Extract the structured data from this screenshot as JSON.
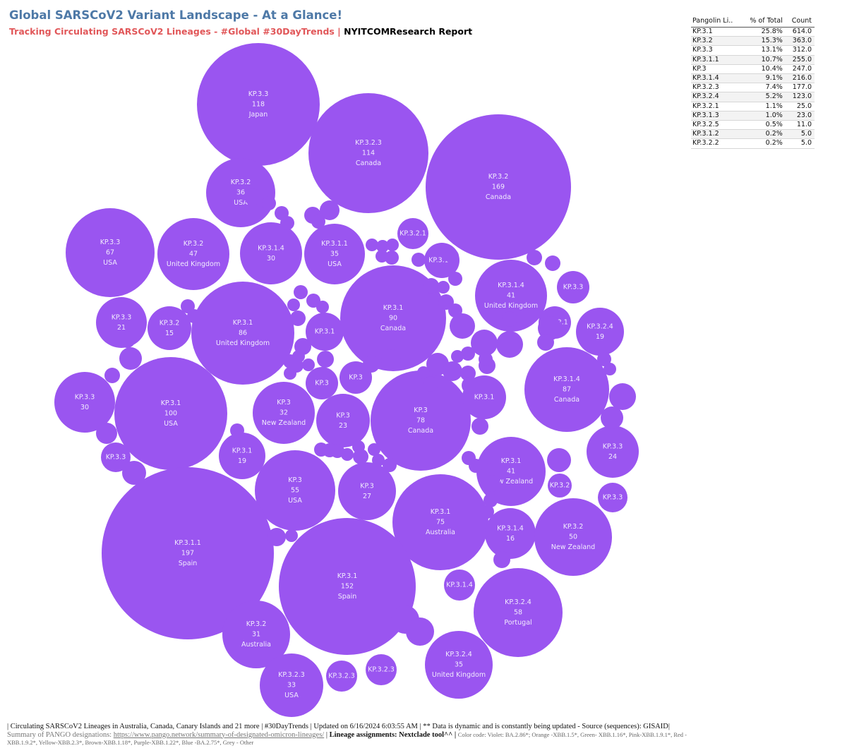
{
  "header": {
    "title": "Global SARSCoV2 Variant Landscape - At a Glance!",
    "subtitle_red": "Tracking Circulating SARSCoV2 Lineages - #Global #30DayTrends",
    "subtitle_sep": " | ",
    "subtitle_black": "NYITCOMResearch Report"
  },
  "colors": {
    "bubble": "#9a55f0",
    "title": "#4e79a7",
    "subtitle": "#e15759",
    "bubble_text": "#f1ebfd"
  },
  "legend_table": {
    "headers": [
      "Pangolin Li..",
      "% of Total",
      "Count"
    ],
    "rows": [
      [
        "KP.3.1",
        "25.8%",
        "614.0"
      ],
      [
        "KP.3.2",
        "15.3%",
        "363.0"
      ],
      [
        "KP.3.3",
        "13.1%",
        "312.0"
      ],
      [
        "KP.3.1.1",
        "10.7%",
        "255.0"
      ],
      [
        "KP.3",
        "10.4%",
        "247.0"
      ],
      [
        "KP.3.1.4",
        "9.1%",
        "216.0"
      ],
      [
        "KP.3.2.3",
        "7.4%",
        "177.0"
      ],
      [
        "KP.3.2.4",
        "5.2%",
        "123.0"
      ],
      [
        "KP.3.2.1",
        "1.1%",
        "25.0"
      ],
      [
        "KP.3.1.3",
        "1.0%",
        "23.0"
      ],
      [
        "KP.3.2.5",
        "0.5%",
        "11.0"
      ],
      [
        "KP.3.1.2",
        "0.2%",
        "5.0"
      ],
      [
        "KP.3.2.2",
        "0.2%",
        "5.0"
      ]
    ]
  },
  "chart_data": {
    "type": "bubble",
    "value_label": "Count",
    "bubbles": [
      {
        "lineage": "KP.3.3",
        "value": 118,
        "country": "Japan"
      },
      {
        "lineage": "KP.3.2.3",
        "value": 114,
        "country": "Canada"
      },
      {
        "lineage": "KP.3.2",
        "value": 169,
        "country": "Canada"
      },
      {
        "lineage": "KP.3.2",
        "value": 36,
        "country": "USA"
      },
      {
        "lineage": "KP.3.3",
        "value": 67,
        "country": "USA"
      },
      {
        "lineage": "KP.3.2",
        "value": 47,
        "country": "United Kingdom"
      },
      {
        "lineage": "KP.3.1.4",
        "value": 30
      },
      {
        "lineage": "KP.3.1.1",
        "value": 35,
        "country": "USA"
      },
      {
        "lineage": "KP.3.2.1"
      },
      {
        "lineage": "KP.3.1.3"
      },
      {
        "lineage": "KP.3.1.4",
        "value": 41,
        "country": "United Kingdom"
      },
      {
        "lineage": "KP.3.3"
      },
      {
        "lineage": "KP.3.3",
        "value": 21
      },
      {
        "lineage": "KP.3.2",
        "value": 15
      },
      {
        "lineage": "KP.3.1",
        "value": 86,
        "country": "United Kingdom"
      },
      {
        "lineage": "KP.3.1"
      },
      {
        "lineage": "KP.3.1",
        "value": 90,
        "country": "Canada"
      },
      {
        "lineage": "KP.3.2.1"
      },
      {
        "lineage": "KP.3.2.4",
        "value": 19
      },
      {
        "lineage": "KP.3.3",
        "value": 30
      },
      {
        "lineage": "KP.3.1",
        "value": 100,
        "country": "USA"
      },
      {
        "lineage": "KP.3"
      },
      {
        "lineage": "KP.3"
      },
      {
        "lineage": "KP.3",
        "value": 32,
        "country": "New Zealand"
      },
      {
        "lineage": "KP.3",
        "value": 23
      },
      {
        "lineage": "KP.3",
        "value": 78,
        "country": "Canada"
      },
      {
        "lineage": "KP.3.1"
      },
      {
        "lineage": "KP.3.1.4",
        "value": 87,
        "country": "Canada"
      },
      {
        "lineage": "KP.3.3"
      },
      {
        "lineage": "KP.3.1",
        "value": 19
      },
      {
        "lineage": "KP.3.3",
        "value": 24
      },
      {
        "lineage": "KP.3.1",
        "value": 41,
        "country": "New Zealand"
      },
      {
        "lineage": "KP.3.2"
      },
      {
        "lineage": "KP.3.3"
      },
      {
        "lineage": "KP.3",
        "value": 55,
        "country": "USA"
      },
      {
        "lineage": "KP.3",
        "value": 27
      },
      {
        "lineage": "KP.3.1",
        "value": 75,
        "country": "Australia"
      },
      {
        "lineage": "KP.3.1.4",
        "value": 16
      },
      {
        "lineage": "KP.3.2",
        "value": 50,
        "country": "New Zealand"
      },
      {
        "lineage": "KP.3.1.1",
        "value": 197,
        "country": "Spain"
      },
      {
        "lineage": "KP.3.1",
        "value": 152,
        "country": "Spain"
      },
      {
        "lineage": "KP.3.1.4"
      },
      {
        "lineage": "KP.3.2.4",
        "value": 58,
        "country": "Portugal"
      },
      {
        "lineage": "KP.3.2",
        "value": 31,
        "country": "Australia"
      },
      {
        "lineage": "KP.3.2.4",
        "value": 35,
        "country": "United Kingdom"
      },
      {
        "lineage": "KP.3.2.3"
      },
      {
        "lineage": "KP.3.2.3"
      },
      {
        "lineage": "KP.3.2.3",
        "value": 33,
        "country": "USA"
      },
      {
        "lineage": ""
      },
      {
        "lineage": ""
      },
      {
        "lineage": ""
      },
      {
        "lineage": ""
      },
      {
        "lineage": ""
      },
      {
        "lineage": ""
      },
      {
        "lineage": ""
      },
      {
        "lineage": ""
      },
      {
        "lineage": ""
      },
      {
        "lineage": ""
      },
      {
        "lineage": ""
      },
      {
        "lineage": ""
      },
      {
        "lineage": ""
      },
      {
        "lineage": ""
      },
      {
        "lineage": ""
      },
      {
        "lineage": ""
      },
      {
        "lineage": ""
      },
      {
        "lineage": ""
      },
      {
        "lineage": ""
      },
      {
        "lineage": ""
      },
      {
        "lineage": ""
      },
      {
        "lineage": ""
      },
      {
        "lineage": ""
      },
      {
        "lineage": ""
      },
      {
        "lineage": ""
      },
      {
        "lineage": ""
      },
      {
        "lineage": ""
      },
      {
        "lineage": ""
      },
      {
        "lineage": ""
      },
      {
        "lineage": ""
      },
      {
        "lineage": ""
      },
      {
        "lineage": ""
      },
      {
        "lineage": ""
      },
      {
        "lineage": ""
      },
      {
        "lineage": ""
      },
      {
        "lineage": ""
      },
      {
        "lineage": ""
      },
      {
        "lineage": ""
      },
      {
        "lineage": ""
      },
      {
        "lineage": ""
      },
      {
        "lineage": ""
      },
      {
        "lineage": ""
      },
      {
        "lineage": ""
      },
      {
        "lineage": ""
      },
      {
        "lineage": ""
      },
      {
        "lineage": ""
      },
      {
        "lineage": ""
      },
      {
        "lineage": ""
      },
      {
        "lineage": ""
      },
      {
        "lineage": ""
      },
      {
        "lineage": ""
      },
      {
        "lineage": ""
      },
      {
        "lineage": ""
      },
      {
        "lineage": ""
      },
      {
        "lineage": ""
      },
      {
        "lineage": ""
      },
      {
        "lineage": ""
      },
      {
        "lineage": ""
      },
      {
        "lineage": ""
      },
      {
        "lineage": ""
      },
      {
        "lineage": ""
      },
      {
        "lineage": ""
      },
      {
        "lineage": ""
      },
      {
        "lineage": ""
      },
      {
        "lineage": ""
      },
      {
        "lineage": ""
      },
      {
        "lineage": ""
      },
      {
        "lineage": ""
      },
      {
        "lineage": ""
      },
      {
        "lineage": ""
      },
      {
        "lineage": ""
      },
      {
        "lineage": ""
      },
      {
        "lineage": ""
      },
      {
        "lineage": ""
      },
      {
        "lineage": ""
      },
      {
        "lineage": ""
      },
      {
        "lineage": ""
      },
      {
        "lineage": ""
      },
      {
        "lineage": ""
      },
      {
        "lineage": ""
      },
      {
        "lineage": ""
      },
      {
        "lineage": ""
      },
      {
        "lineage": ""
      },
      {
        "lineage": ""
      },
      {
        "lineage": ""
      },
      {
        "lineage": ""
      },
      {
        "lineage": ""
      },
      {
        "lineage": ""
      },
      {
        "lineage": ""
      },
      {
        "lineage": ""
      },
      {
        "lineage": ""
      },
      {
        "lineage": ""
      },
      {
        "lineage": ""
      },
      {
        "lineage": ""
      },
      {
        "lineage": ""
      },
      {
        "lineage": ""
      },
      {
        "lineage": ""
      },
      {
        "lineage": ""
      },
      {
        "lineage": ""
      },
      {
        "lineage": ""
      }
    ]
  },
  "footer": {
    "line1": "| Circulating SARSCoV2 Lineages in Australia, Canada, Canary Islands and 21 more | #30DayTrends | Updated on 6/16/2024 6:03:55 AM | ** Data is dynamic and is constantly being updated - Source (sequences): GISAID|",
    "line1_grey": " Summary of PANGO designations: ",
    "link": "https://www.pango.network/summary-of-designated-omicron-lineages/",
    "sep": " | ",
    "lineage_note": "Lineage assignments: Nextclade tool^^ |",
    "color_code": "Color code: Violet: BA.2.86*; Orange -XBB.1.5*, Green- XBB.1.16*, Pink-XBB.1.9.1*, Red -XBB.1.9.2*, Yellow-XBB.2.3*, Brown-XBB.1.18*, Purple-XBB.1.22*, Blue -BA.2.75*, Grey - Other"
  }
}
